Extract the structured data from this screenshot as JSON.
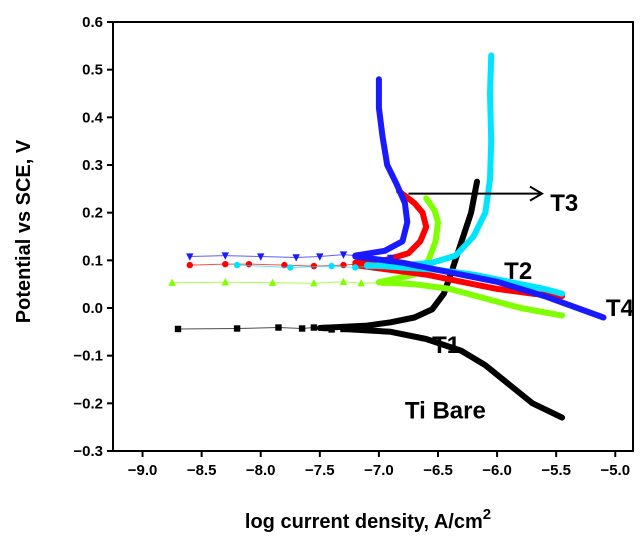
{
  "chart_data": {
    "type": "line",
    "xlabel": "log current density, A/cm",
    "xlabel_sup": "2",
    "ylabel": "Potential vs SCE, V",
    "xlim": [
      -9.25,
      -4.85
    ],
    "ylim": [
      -0.3,
      0.6
    ],
    "x_ticks": [
      -9.0,
      -8.5,
      -8.0,
      -7.5,
      -7.0,
      -6.5,
      -6.0,
      -5.5,
      -5.0
    ],
    "x_tick_labels": [
      "−9.0",
      "−8.5",
      "−8.0",
      "−7.5",
      "−7.0",
      "−6.5",
      "−6.0",
      "−5.5",
      "−5.0"
    ],
    "y_ticks": [
      -0.3,
      -0.2,
      -0.1,
      0.0,
      0.1,
      0.2,
      0.3,
      0.4,
      0.5,
      0.6
    ],
    "y_tick_labels": [
      "−0.3",
      "−0.2",
      "−0.1",
      "0.0",
      "0.1",
      "0.2",
      "0.3",
      "0.4",
      "0.5",
      "0.6"
    ],
    "grid": false,
    "annotation_arrow": {
      "from": [
        -6.75,
        0.24
      ],
      "to": [
        -5.62,
        0.24
      ]
    },
    "series": [
      {
        "name": "Ti Bare",
        "color": "#000000",
        "marker": "square",
        "label_at": [
          -6.78,
          -0.215
        ],
        "scatter": [
          [
            -8.7,
            -0.044
          ],
          [
            -8.2,
            -0.043
          ],
          [
            -7.85,
            -0.041
          ],
          [
            -7.65,
            -0.043
          ],
          [
            -7.55,
            -0.041
          ],
          [
            -7.45,
            -0.042
          ],
          [
            -7.4,
            -0.045
          ],
          [
            -7.3,
            -0.044
          ]
        ],
        "anodic": [
          [
            -7.5,
            -0.042
          ],
          [
            -7.1,
            -0.037
          ],
          [
            -6.9,
            -0.03
          ],
          [
            -6.7,
            -0.02
          ],
          [
            -6.55,
            -0.003
          ],
          [
            -6.45,
            0.03
          ],
          [
            -6.38,
            0.08
          ],
          [
            -6.3,
            0.14
          ],
          [
            -6.22,
            0.2
          ],
          [
            -6.17,
            0.265
          ]
        ],
        "cathodic": [
          [
            -7.3,
            -0.044
          ],
          [
            -6.9,
            -0.05
          ],
          [
            -6.6,
            -0.065
          ],
          [
            -6.3,
            -0.09
          ],
          [
            -6.1,
            -0.12
          ],
          [
            -5.9,
            -0.16
          ],
          [
            -5.7,
            -0.2
          ],
          [
            -5.45,
            -0.23
          ]
        ]
      },
      {
        "name": "T1",
        "color": "#7fff00",
        "marker": "triangle-up",
        "label_at": [
          -6.55,
          -0.078
        ],
        "scatter": [
          [
            -8.75,
            0.053
          ],
          [
            -8.3,
            0.054
          ],
          [
            -7.9,
            0.053
          ],
          [
            -7.55,
            0.052
          ],
          [
            -7.3,
            0.055
          ],
          [
            -7.15,
            0.052
          ],
          [
            -6.95,
            0.053
          ]
        ],
        "anodic": [
          [
            -7.0,
            0.054
          ],
          [
            -6.7,
            0.07
          ],
          [
            -6.58,
            0.1
          ],
          [
            -6.52,
            0.14
          ],
          [
            -6.5,
            0.18
          ],
          [
            -6.53,
            0.205
          ],
          [
            -6.6,
            0.23
          ]
        ],
        "cathodic": [
          [
            -7.0,
            0.054
          ],
          [
            -6.7,
            0.05
          ],
          [
            -6.4,
            0.04
          ],
          [
            -6.1,
            0.02
          ],
          [
            -5.8,
            0.0
          ],
          [
            -5.45,
            -0.016
          ]
        ]
      },
      {
        "name": "T2",
        "color": "#ff0000",
        "marker": "circle",
        "label_at": [
          -5.94,
          0.078
        ],
        "scatter": [
          [
            -8.6,
            0.09
          ],
          [
            -8.3,
            0.092
          ],
          [
            -8.1,
            0.092
          ],
          [
            -7.8,
            0.09
          ],
          [
            -7.55,
            0.088
          ],
          [
            -7.3,
            0.09
          ],
          [
            -7.05,
            0.095
          ],
          [
            -6.95,
            0.088
          ]
        ],
        "anodic": [
          [
            -7.2,
            0.095
          ],
          [
            -6.95,
            0.1
          ],
          [
            -6.75,
            0.115
          ],
          [
            -6.65,
            0.14
          ],
          [
            -6.6,
            0.17
          ],
          [
            -6.63,
            0.2
          ],
          [
            -6.7,
            0.22
          ],
          [
            -6.83,
            0.245
          ]
        ],
        "cathodic": [
          [
            -7.2,
            0.09
          ],
          [
            -6.9,
            0.08
          ],
          [
            -6.6,
            0.07
          ],
          [
            -6.3,
            0.055
          ],
          [
            -6.0,
            0.04
          ],
          [
            -5.7,
            0.03
          ],
          [
            -5.45,
            0.025
          ]
        ]
      },
      {
        "name": "T3",
        "color": "#00e5ff",
        "marker": "circle",
        "label_at": [
          -5.55,
          0.22
        ],
        "scatter": [
          [
            -8.2,
            0.09
          ],
          [
            -7.75,
            0.085
          ],
          [
            -7.4,
            0.088
          ],
          [
            -7.2,
            0.085
          ],
          [
            -7.0,
            0.09
          ],
          [
            -6.8,
            0.085
          ]
        ],
        "anodic": [
          [
            -7.1,
            0.088
          ],
          [
            -6.8,
            0.09
          ],
          [
            -6.55,
            0.095
          ],
          [
            -6.35,
            0.11
          ],
          [
            -6.2,
            0.15
          ],
          [
            -6.1,
            0.2
          ],
          [
            -6.06,
            0.27
          ],
          [
            -6.05,
            0.35
          ],
          [
            -6.06,
            0.45
          ],
          [
            -6.05,
            0.53
          ]
        ],
        "cathodic": [
          [
            -7.1,
            0.09
          ],
          [
            -6.8,
            0.085
          ],
          [
            -6.5,
            0.08
          ],
          [
            -6.2,
            0.07
          ],
          [
            -5.9,
            0.055
          ],
          [
            -5.6,
            0.04
          ],
          [
            -5.45,
            0.03
          ]
        ]
      },
      {
        "name": "T4",
        "color": "#1a1aff",
        "marker": "triangle-down",
        "label_at": [
          -5.08,
          0.0
        ],
        "scatter": [
          [
            -8.6,
            0.108
          ],
          [
            -8.3,
            0.11
          ],
          [
            -8.0,
            0.108
          ],
          [
            -7.7,
            0.106
          ],
          [
            -7.5,
            0.108
          ],
          [
            -7.3,
            0.112
          ],
          [
            -7.1,
            0.108
          ],
          [
            -6.9,
            0.105
          ]
        ],
        "anodic": [
          [
            -7.2,
            0.11
          ],
          [
            -6.95,
            0.12
          ],
          [
            -6.8,
            0.14
          ],
          [
            -6.76,
            0.18
          ],
          [
            -6.78,
            0.22
          ],
          [
            -6.85,
            0.26
          ],
          [
            -6.93,
            0.3
          ],
          [
            -6.97,
            0.36
          ],
          [
            -7.0,
            0.42
          ],
          [
            -7.0,
            0.48
          ]
        ],
        "cathodic": [
          [
            -7.2,
            0.108
          ],
          [
            -6.8,
            0.095
          ],
          [
            -6.4,
            0.075
          ],
          [
            -6.0,
            0.055
          ],
          [
            -5.6,
            0.025
          ],
          [
            -5.1,
            -0.02
          ]
        ]
      }
    ]
  }
}
